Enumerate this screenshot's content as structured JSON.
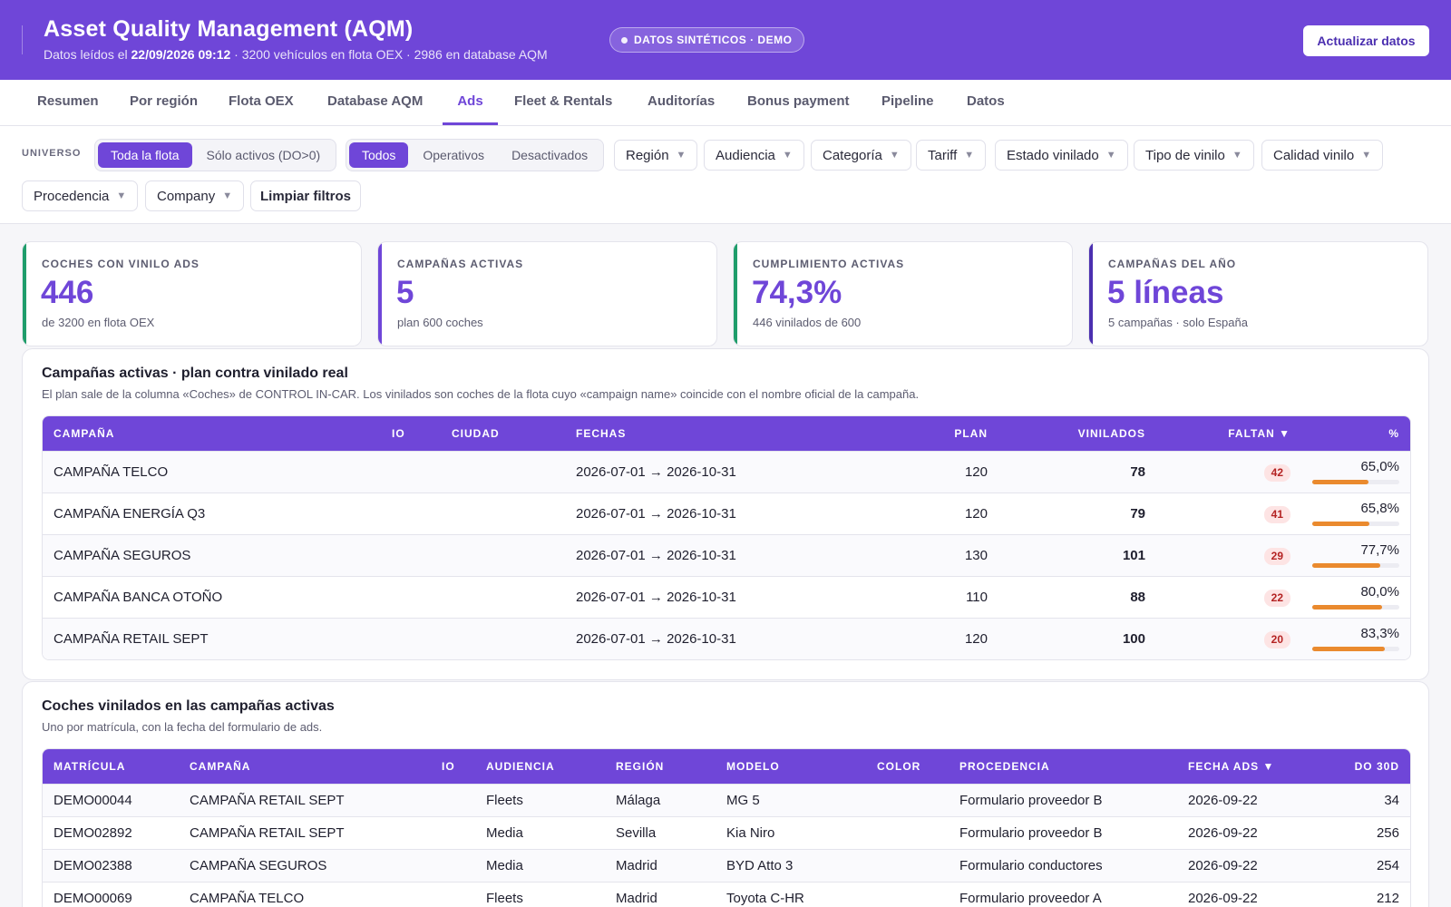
{
  "header": {
    "title": "Asset Quality Management (AQM)",
    "subtitle_prefix": "Datos leídos el ",
    "read_datetime": "22/09/2026 09:12",
    "subtitle_suffix": " · 3200 vehículos en flota OEX · 2986 en database AQM",
    "badge": "DATOS SINTÉTICOS · DEMO",
    "refresh_button": "Actualizar datos"
  },
  "tabs": [
    "Resumen",
    "Por región",
    "Flota OEX",
    "Database AQM",
    "Ads",
    "Fleet & Rentals",
    "Auditorías",
    "Bonus payment",
    "Pipeline",
    "Datos"
  ],
  "active_tab": "Ads",
  "filters": {
    "universe_label": "UNIVERSO",
    "universe_options": [
      "Toda la flota",
      "Sólo activos (DO>0)"
    ],
    "universe_selected": "Toda la flota",
    "state_options": [
      "Todos",
      "Operativos",
      "Desactivados"
    ],
    "state_selected": "Todos",
    "dropdowns": [
      "Región",
      "Audiencia",
      "Categoría",
      "Tariff",
      "Estado vinilado",
      "Tipo de vinilo",
      "Calidad vinilo",
      "Procedencia",
      "Company"
    ],
    "clear_button": "Limpiar filtros"
  },
  "kpis": [
    {
      "label": "COCHES CON VINILO ADS",
      "value": "446",
      "sub": "de 3200 en flota OEX",
      "accent": "#1f9d6b"
    },
    {
      "label": "CAMPAÑAS ACTIVAS",
      "value": "5",
      "sub": "plan 600 coches",
      "accent": "#6f46d8"
    },
    {
      "label": "CUMPLIMIENTO ACTIVAS",
      "value": "74,3%",
      "sub": "446 vinilados de 600",
      "accent": "#1f9d6b"
    },
    {
      "label": "CAMPAÑAS DEL AÑO",
      "value": "5 líneas",
      "sub": "5 campañas · solo España",
      "accent": "#4b2fb0"
    }
  ],
  "campaigns_panel": {
    "title": "Campañas activas · plan contra vinilado real",
    "description": "El plan sale de la columna «Coches» de CONTROL IN-CAR. Los vinilados son coches de la flota cuyo «campaign name» coincide con el nombre oficial de la campaña.",
    "columns": [
      "CAMPAÑA",
      "IO",
      "CIUDAD",
      "FECHAS",
      "PLAN",
      "VINILADOS",
      "FALTAN ▼",
      "%"
    ],
    "rows": [
      {
        "campaign": "CAMPAÑA TELCO",
        "io": "",
        "city": "",
        "dates": "2026-07-01 → 2026-10-31",
        "plan": "120",
        "vinilados": "78",
        "faltan": "42",
        "pct_label": "65,0%",
        "pct": 0.65
      },
      {
        "campaign": "CAMPAÑA ENERGÍA Q3",
        "io": "",
        "city": "",
        "dates": "2026-07-01 → 2026-10-31",
        "plan": "120",
        "vinilados": "79",
        "faltan": "41",
        "pct_label": "65,8%",
        "pct": 0.658
      },
      {
        "campaign": "CAMPAÑA SEGUROS",
        "io": "",
        "city": "",
        "dates": "2026-07-01 → 2026-10-31",
        "plan": "130",
        "vinilados": "101",
        "faltan": "29",
        "pct_label": "77,7%",
        "pct": 0.777
      },
      {
        "campaign": "CAMPAÑA BANCA OTOÑO",
        "io": "",
        "city": "",
        "dates": "2026-07-01 → 2026-10-31",
        "plan": "110",
        "vinilados": "88",
        "faltan": "22",
        "pct_label": "80,0%",
        "pct": 0.8
      },
      {
        "campaign": "CAMPAÑA RETAIL SEPT",
        "io": "",
        "city": "",
        "dates": "2026-07-01 → 2026-10-31",
        "plan": "120",
        "vinilados": "100",
        "faltan": "20",
        "pct_label": "83,3%",
        "pct": 0.833
      }
    ]
  },
  "cars_panel": {
    "title": "Coches vinilados en las campañas activas",
    "description": "Uno por matrícula, con la fecha del formulario de ads.",
    "columns": [
      "MATRÍCULA",
      "CAMPAÑA",
      "IO",
      "AUDIENCIA",
      "REGIÓN",
      "MODELO",
      "COLOR",
      "PROCEDENCIA",
      "FECHA ADS ▼",
      "DO 30D"
    ],
    "rows": [
      {
        "plate": "DEMO00044",
        "campaign": "CAMPAÑA RETAIL SEPT",
        "io": "",
        "audience": "Fleets",
        "region": "Málaga",
        "model": "MG 5",
        "color": "",
        "source": "Formulario proveedor B",
        "date": "2026-09-22",
        "do30": "34"
      },
      {
        "plate": "DEMO02892",
        "campaign": "CAMPAÑA RETAIL SEPT",
        "io": "",
        "audience": "Media",
        "region": "Sevilla",
        "model": "Kia Niro",
        "color": "",
        "source": "Formulario proveedor B",
        "date": "2026-09-22",
        "do30": "256"
      },
      {
        "plate": "DEMO02388",
        "campaign": "CAMPAÑA SEGUROS",
        "io": "",
        "audience": "Media",
        "region": "Madrid",
        "model": "BYD Atto 3",
        "color": "",
        "source": "Formulario conductores",
        "date": "2026-09-22",
        "do30": "254"
      },
      {
        "plate": "DEMO00069",
        "campaign": "CAMPAÑA TELCO",
        "io": "",
        "audience": "Fleets",
        "region": "Madrid",
        "model": "Toyota C-HR",
        "color": "",
        "source": "Formulario proveedor A",
        "date": "2026-09-22",
        "do30": "212"
      }
    ]
  }
}
